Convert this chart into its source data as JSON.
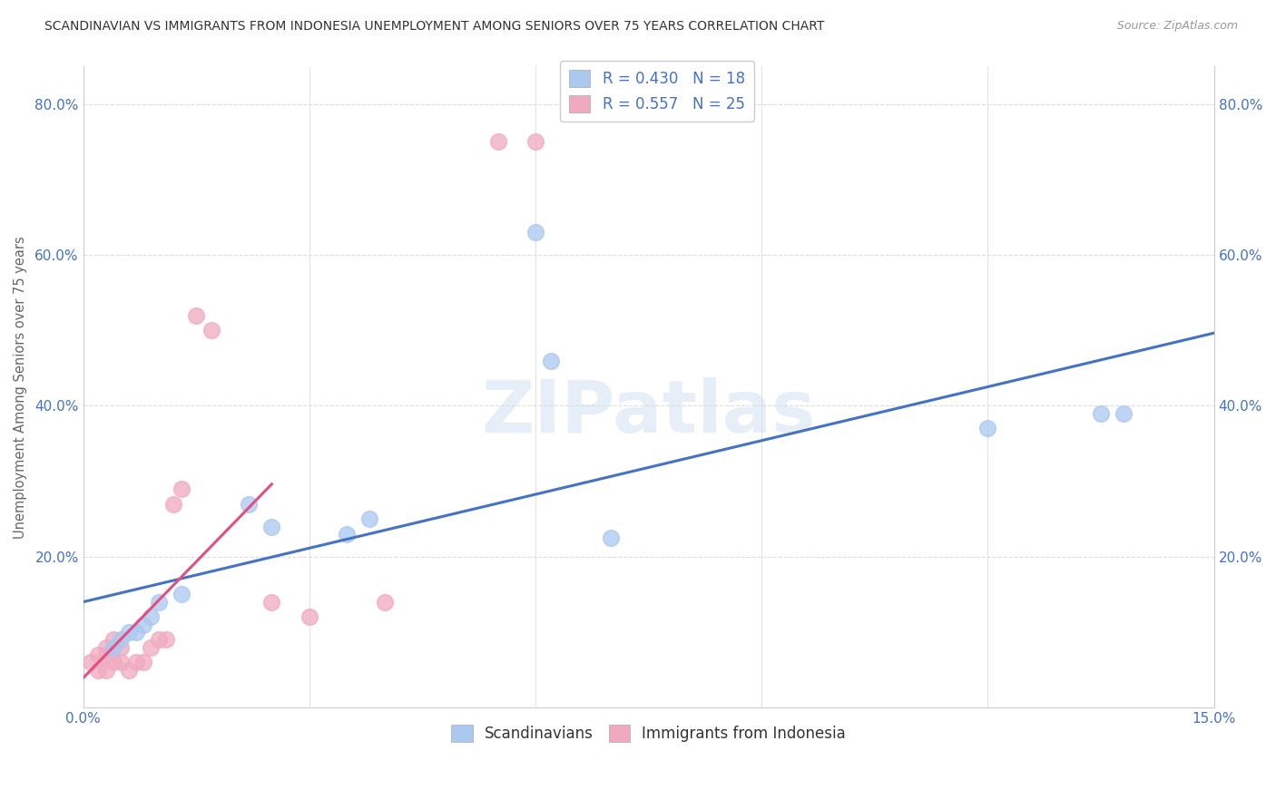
{
  "title": "SCANDINAVIAN VS IMMIGRANTS FROM INDONESIA UNEMPLOYMENT AMONG SENIORS OVER 75 YEARS CORRELATION CHART",
  "source": "Source: ZipAtlas.com",
  "ylabel": "Unemployment Among Seniors over 75 years",
  "xlim": [
    0,
    0.15
  ],
  "ylim": [
    0,
    0.85
  ],
  "xticks": [
    0.0,
    0.03,
    0.06,
    0.09,
    0.12,
    0.15
  ],
  "yticks": [
    0.0,
    0.2,
    0.4,
    0.6,
    0.8
  ],
  "ytick_labels": [
    "",
    "20.0%",
    "40.0%",
    "60.0%",
    "80.0%"
  ],
  "xtick_labels": [
    "0.0%",
    "",
    "",
    "",
    "",
    "15.0%"
  ],
  "background_color": "#ffffff",
  "grid_color": "#dddddd",
  "scandinavian_color": "#aac8f0",
  "indonesia_color": "#f0aac0",
  "trendline_blue": "#4472c4",
  "trendline_pink": "#e05080",
  "trendline_dashed_color": "#e0a0b8",
  "legend_R_blue": "0.430",
  "legend_N_blue": "18",
  "legend_R_pink": "0.557",
  "legend_N_pink": "25",
  "legend_text_color": "#4472c4",
  "watermark": "ZIPatlas",
  "scandinavian_x": [
    0.004,
    0.005,
    0.006,
    0.007,
    0.008,
    0.009,
    0.01,
    0.013,
    0.022,
    0.025,
    0.035,
    0.038,
    0.06,
    0.062,
    0.07,
    0.12,
    0.135,
    0.138
  ],
  "scandinavian_y": [
    0.08,
    0.09,
    0.1,
    0.1,
    0.11,
    0.12,
    0.14,
    0.15,
    0.27,
    0.24,
    0.23,
    0.25,
    0.63,
    0.46,
    0.225,
    0.37,
    0.39,
    0.39
  ],
  "indonesia_x": [
    0.001,
    0.002,
    0.002,
    0.003,
    0.003,
    0.003,
    0.004,
    0.004,
    0.005,
    0.005,
    0.006,
    0.007,
    0.008,
    0.009,
    0.01,
    0.011,
    0.012,
    0.013,
    0.015,
    0.017,
    0.025,
    0.03,
    0.04,
    0.055,
    0.06
  ],
  "indonesia_y": [
    0.06,
    0.05,
    0.07,
    0.05,
    0.07,
    0.08,
    0.06,
    0.09,
    0.06,
    0.08,
    0.05,
    0.06,
    0.06,
    0.08,
    0.09,
    0.09,
    0.27,
    0.29,
    0.52,
    0.5,
    0.14,
    0.12,
    0.14,
    0.75,
    0.75
  ],
  "marker_size": 160
}
